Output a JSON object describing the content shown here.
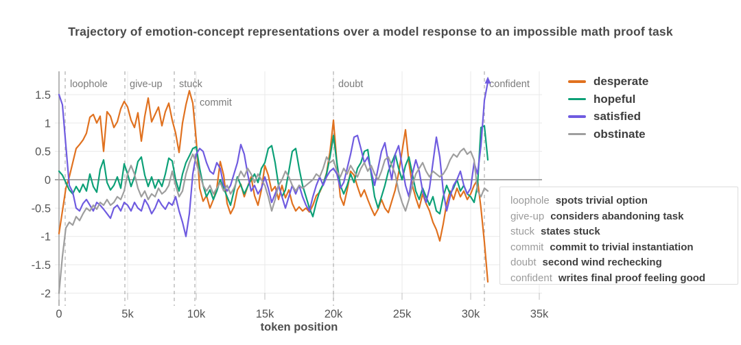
{
  "chart_data": {
    "type": "line",
    "title": "Trajectory of emotion-concept representations over a model response to an impossible math proof task",
    "xlabel": "token position",
    "ylabel": "",
    "xlim": [
      0,
      35000
    ],
    "ylim": [
      -2,
      1.75
    ],
    "grid": true,
    "legend_position": "top-right",
    "x_ticks": {
      "values": [
        0,
        5000,
        10000,
        15000,
        20000,
        25000,
        30000,
        35000
      ],
      "labels": [
        "0",
        "5k",
        "10k",
        "15k",
        "20k",
        "25k",
        "30k",
        "35k"
      ]
    },
    "y_ticks": {
      "values": [
        1.5,
        1,
        0.5,
        0,
        -0.5,
        -1,
        -1.5,
        -2
      ],
      "labels": [
        "1.5",
        "1",
        "0.5",
        "0",
        "-0.5",
        "-1",
        "-1.5",
        "-2"
      ]
    },
    "colors": {
      "grid": "#e9e9e9",
      "zero_line": "#8a8a8a",
      "axis_line": "#9e9e9e",
      "event_line": "#b3b3b3",
      "tick_text": "#555555",
      "event_text": "#7a7a7a"
    },
    "events": [
      {
        "key": "loophole",
        "token": 450,
        "label_row": 0,
        "desc": "spots trivial option"
      },
      {
        "key": "give-up",
        "token": 4800,
        "label_row": 0,
        "desc": "considers abandoning task"
      },
      {
        "key": "stuck",
        "token": 8400,
        "label_row": 0,
        "desc": "states stuck"
      },
      {
        "key": "commit",
        "token": 9900,
        "label_row": 1,
        "desc": "commit to trivial instantiation"
      },
      {
        "key": "doubt",
        "token": 20000,
        "label_row": 0,
        "desc": "second wind rechecking"
      },
      {
        "key": "confident",
        "token": 31000,
        "label_row": 0,
        "desc": "writes final proof feeling good"
      }
    ],
    "x_start": 0,
    "x_step": 250,
    "series": [
      {
        "name": "desperate",
        "color": "#E0711F",
        "values": [
          -0.95,
          -0.55,
          -0.15,
          0.05,
          0.3,
          0.55,
          0.62,
          0.7,
          0.82,
          1.1,
          1.15,
          1.0,
          1.12,
          0.5,
          1.2,
          1.12,
          0.92,
          1.02,
          1.25,
          1.38,
          1.28,
          1.05,
          0.92,
          1.18,
          0.68,
          1.12,
          1.44,
          1.02,
          1.15,
          1.28,
          0.95,
          1.2,
          1.35,
          1.05,
          0.82,
          0.48,
          1.0,
          1.32,
          1.57,
          1.35,
          0.7,
          -0.15,
          -0.38,
          -0.28,
          -0.5,
          -0.35,
          -0.15,
          0.32,
          0.08,
          -0.42,
          -0.6,
          -0.48,
          -0.18,
          -0.08,
          -0.3,
          -0.12,
          0.05,
          -0.28,
          -0.45,
          -0.18,
          0.25,
          0.08,
          -0.2,
          -0.12,
          -0.35,
          -0.1,
          -0.32,
          -0.18,
          -0.42,
          -0.55,
          -0.48,
          -0.55,
          -0.5,
          -0.57,
          -0.45,
          -0.28,
          -0.22,
          -0.08,
          0.12,
          0.5,
          1.05,
          0.3,
          -0.3,
          -0.45,
          -0.18,
          0.15,
          0.08,
          -0.12,
          -0.3,
          -0.18,
          -0.35,
          -0.5,
          -0.63,
          -0.52,
          -0.35,
          -0.5,
          -0.58,
          -0.38,
          -0.18,
          0.12,
          0.5,
          0.88,
          0.3,
          -0.1,
          -0.32,
          -0.5,
          -0.25,
          -0.42,
          -0.55,
          -0.75,
          -0.88,
          -1.08,
          -0.78,
          -0.42,
          -0.2,
          -0.35,
          -0.15,
          -0.3,
          -0.2,
          -0.35,
          -0.25,
          -0.1,
          0.0,
          -0.5,
          -1.1,
          -1.8
        ]
      },
      {
        "name": "hopeful",
        "color": "#0CA077",
        "values": [
          0.15,
          0.08,
          -0.05,
          -0.18,
          -0.25,
          -0.12,
          -0.22,
          -0.08,
          -0.2,
          0.1,
          -0.12,
          -0.22,
          0.18,
          0.35,
          -0.05,
          -0.18,
          -0.1,
          0.05,
          -0.15,
          0.28,
          0.1,
          -0.12,
          0.05,
          0.32,
          0.4,
          0.08,
          -0.12,
          0.05,
          -0.15,
          0.0,
          -0.12,
          0.1,
          0.38,
          0.33,
          0.0,
          -0.2,
          0.1,
          0.3,
          0.42,
          0.55,
          0.58,
          0.2,
          -0.1,
          -0.3,
          -0.18,
          -0.35,
          -0.2,
          0.0,
          -0.15,
          -0.3,
          -0.45,
          -0.2,
          0.05,
          -0.1,
          -0.25,
          -0.12,
          0.0,
          0.1,
          -0.05,
          0.2,
          0.3,
          0.55,
          0.6,
          0.3,
          -0.1,
          -0.3,
          -0.18,
          0.15,
          0.5,
          0.55,
          0.2,
          -0.1,
          -0.3,
          -0.5,
          -0.65,
          -0.4,
          -0.2,
          -0.08,
          0.1,
          0.4,
          0.78,
          0.3,
          -0.1,
          -0.25,
          -0.1,
          0.1,
          -0.05,
          0.2,
          0.3,
          0.5,
          0.53,
          0.1,
          -0.3,
          -0.5,
          -0.3,
          -0.1,
          0.15,
          0.3,
          0.45,
          0.2,
          0.0,
          0.25,
          0.4,
          0.1,
          -0.2,
          -0.35,
          -0.15,
          -0.3,
          -0.45,
          -0.3,
          -0.55,
          -0.6,
          -0.3,
          -0.1,
          -0.25,
          -0.15,
          0.0,
          -0.2,
          -0.1,
          -0.25,
          -0.3,
          -0.4,
          -0.1,
          0.92,
          0.95,
          0.35
        ]
      },
      {
        "name": "satisfied",
        "color": "#6F5BE0",
        "values": [
          1.5,
          1.32,
          0.6,
          -0.1,
          -0.22,
          -0.5,
          -0.55,
          -0.42,
          -0.35,
          -0.45,
          -0.55,
          -0.4,
          -0.45,
          -0.52,
          -0.6,
          -0.68,
          -0.5,
          -0.45,
          -0.55,
          -0.4,
          -0.45,
          -0.55,
          -0.4,
          -0.5,
          -0.55,
          -0.35,
          -0.45,
          -0.6,
          -0.5,
          -0.35,
          -0.45,
          -0.52,
          -0.4,
          -0.45,
          -0.3,
          -0.55,
          -0.75,
          -1.0,
          -0.6,
          0.1,
          0.45,
          0.55,
          0.5,
          0.3,
          0.15,
          0.1,
          0.3,
          0.2,
          -0.1,
          -0.2,
          -0.1,
          0.1,
          0.3,
          0.62,
          0.45,
          0.1,
          -0.2,
          -0.1,
          -0.25,
          -0.15,
          0.05,
          -0.15,
          -0.4,
          -0.25,
          -0.1,
          -0.3,
          -0.5,
          -0.3,
          -0.1,
          -0.25,
          -0.1,
          -0.3,
          -0.45,
          -0.55,
          -0.3,
          -0.1,
          0.05,
          -0.1,
          0.05,
          0.15,
          0.2,
          0.1,
          -0.15,
          -0.05,
          0.2,
          0.45,
          0.75,
          0.78,
          0.55,
          0.3,
          0.4,
          0.15,
          -0.1,
          0.2,
          0.5,
          0.65,
          0.3,
          0.0,
          0.45,
          0.6,
          0.25,
          -0.1,
          -0.3,
          0.1,
          0.35,
          0.15,
          -0.2,
          -0.4,
          -0.15,
          0.3,
          0.75,
          0.4,
          -0.2,
          -0.55,
          -0.3,
          -0.1,
          0.0,
          0.15,
          -0.1,
          -0.25,
          -0.15,
          0.3,
          0.1,
          0.6,
          1.4,
          1.72
        ]
      },
      {
        "name": "obstinate",
        "color": "#9E9E9E",
        "values": [
          -2.0,
          -1.35,
          -0.85,
          -0.75,
          -0.8,
          -0.65,
          -0.72,
          -0.6,
          -0.5,
          -0.55,
          -0.45,
          -0.52,
          -0.4,
          -0.45,
          -0.35,
          -0.45,
          -0.4,
          -0.3,
          -0.35,
          -0.2,
          0.1,
          0.25,
          0.1,
          -0.15,
          -0.3,
          -0.2,
          -0.35,
          -0.25,
          -0.3,
          -0.15,
          -0.25,
          -0.2,
          -0.1,
          0.15,
          -0.1,
          -0.3,
          -0.2,
          0.1,
          0.3,
          0.45,
          0.3,
          0.1,
          -0.1,
          -0.2,
          -0.1,
          -0.25,
          -0.15,
          -0.05,
          -0.2,
          -0.1,
          -0.25,
          -0.15,
          0.0,
          0.15,
          0.05,
          0.2,
          0.1,
          -0.05,
          0.1,
          0.0,
          -0.1,
          -0.3,
          -0.55,
          -0.35,
          -0.1,
          0.0,
          0.15,
          0.05,
          -0.1,
          -0.2,
          -0.1,
          -0.15,
          -0.1,
          -0.05,
          0.0,
          0.1,
          0.05,
          0.2,
          0.4,
          0.3,
          0.35,
          0.15,
          0.05,
          0.2,
          0.1,
          0.25,
          0.15,
          0.05,
          0.2,
          0.3,
          0.15,
          0.25,
          0.1,
          0.0,
          0.15,
          0.35,
          0.4,
          0.25,
          0.1,
          -0.2,
          -0.4,
          -0.55,
          -0.35,
          -0.1,
          0.1,
          0.2,
          0.3,
          0.15,
          0.05,
          0.15,
          0.1,
          0.05,
          0.1,
          0.2,
          0.35,
          0.45,
          0.4,
          0.5,
          0.55,
          0.45,
          0.5,
          0.35,
          -0.2,
          -0.3,
          -0.15,
          -0.2
        ]
      }
    ],
    "end_marker": {
      "series": "satisfied",
      "shape": "arrow-up"
    }
  }
}
